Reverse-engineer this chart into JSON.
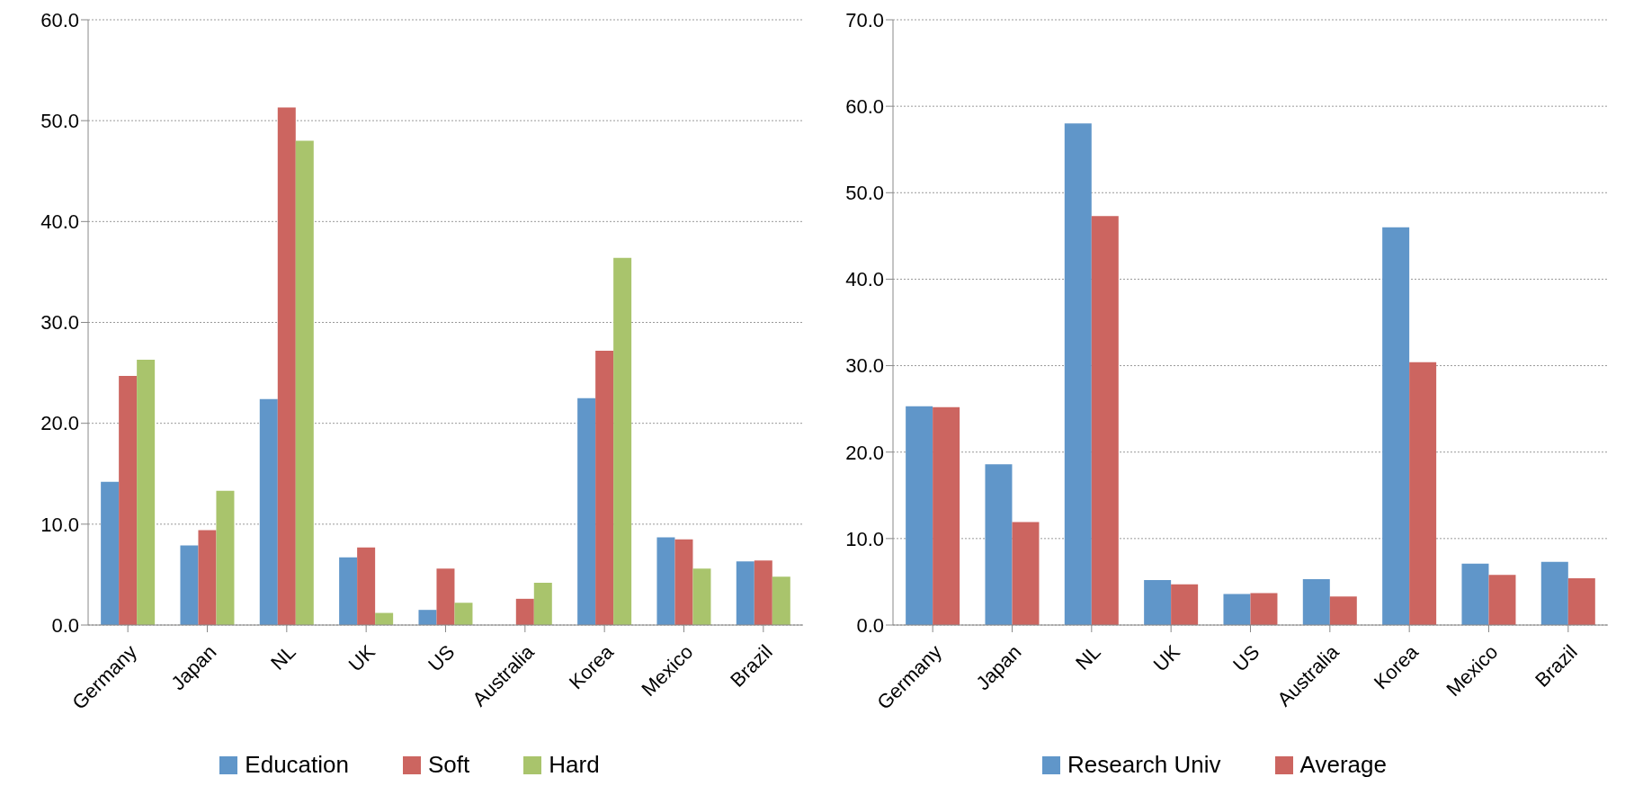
{
  "chart_data": [
    {
      "type": "bar",
      "categories": [
        "Germany",
        "Japan",
        "NL",
        "UK",
        "US",
        "Australia",
        "Korea",
        "Mexico",
        "Brazil"
      ],
      "series": [
        {
          "name": "Education",
          "color": "#6096c9",
          "values": [
            14.2,
            7.9,
            22.4,
            6.7,
            1.5,
            null,
            22.5,
            8.7,
            6.3
          ]
        },
        {
          "name": "Soft",
          "color": "#cc6560",
          "values": [
            24.7,
            9.4,
            51.3,
            7.7,
            5.6,
            2.6,
            27.2,
            8.5,
            6.4
          ]
        },
        {
          "name": "Hard",
          "color": "#a9c46c",
          "values": [
            26.3,
            13.3,
            48.0,
            1.2,
            2.2,
            4.2,
            36.4,
            5.6,
            4.8
          ]
        }
      ],
      "ylim": [
        0,
        60
      ],
      "yticks": [
        {
          "value": 0,
          "label": "0.0"
        },
        {
          "value": 10,
          "label": "10.0"
        },
        {
          "value": 20,
          "label": "20.0"
        },
        {
          "value": 30,
          "label": "30.0"
        },
        {
          "value": 40,
          "label": "40.0"
        },
        {
          "value": 50,
          "label": "50.0"
        },
        {
          "value": 60,
          "label": "60.0"
        }
      ],
      "grid": "y",
      "legend": "bottom"
    },
    {
      "type": "bar",
      "categories": [
        "Germany",
        "Japan",
        "NL",
        "UK",
        "US",
        "Australia",
        "Korea",
        "Mexico",
        "Brazil"
      ],
      "series": [
        {
          "name": "Research Univ",
          "color": "#6096c9",
          "values": [
            25.3,
            18.6,
            58.0,
            5.2,
            3.6,
            5.3,
            46.0,
            7.1,
            7.3
          ]
        },
        {
          "name": "Average",
          "color": "#cc6560",
          "values": [
            25.2,
            11.9,
            47.3,
            4.7,
            3.7,
            3.3,
            30.4,
            5.8,
            5.4
          ]
        }
      ],
      "ylim": [
        0,
        70
      ],
      "yticks": [
        {
          "value": 0,
          "label": "0.0"
        },
        {
          "value": 10,
          "label": "10.0"
        },
        {
          "value": 20,
          "label": "20.0"
        },
        {
          "value": 30,
          "label": "30.0"
        },
        {
          "value": 40,
          "label": "40.0"
        },
        {
          "value": 50,
          "label": "50.0"
        },
        {
          "value": 60,
          "label": "60.0"
        },
        {
          "value": 70,
          "label": "70.0"
        }
      ],
      "grid": "y",
      "legend": "bottom"
    }
  ]
}
